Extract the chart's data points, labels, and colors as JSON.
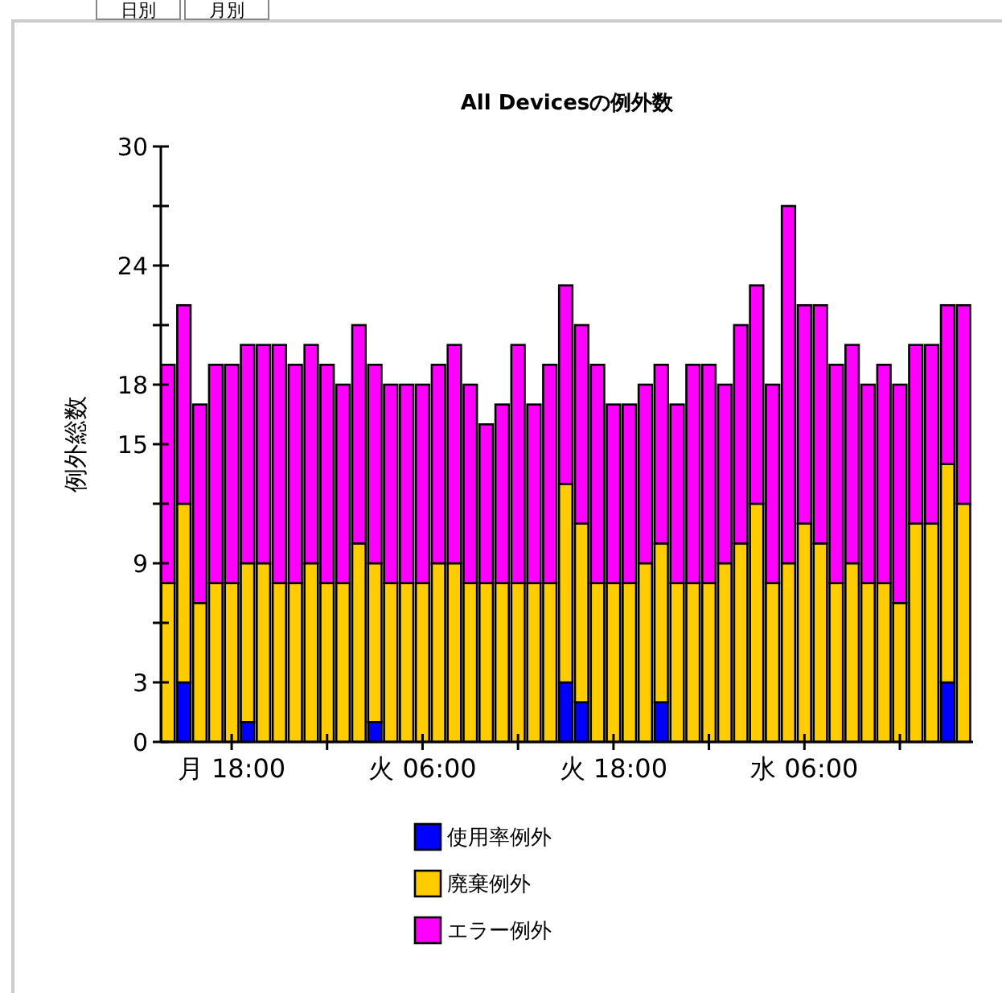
{
  "chart_data": {
    "type": "bar",
    "stacked": true,
    "title": "All Devicesの例外数",
    "ylabel": "例外総数",
    "annotations": [
      "日別",
      "月別"
    ],
    "categories": [
      null,
      null,
      null,
      null,
      "月 18:00",
      null,
      null,
      null,
      null,
      null,
      null,
      null,
      null,
      null,
      null,
      null,
      "火 06:00",
      null,
      null,
      null,
      null,
      null,
      null,
      null,
      null,
      null,
      null,
      null,
      "火 18:00",
      null,
      null,
      null,
      null,
      null,
      null,
      null,
      null,
      null,
      null,
      null,
      "水 06:00",
      null,
      null,
      null,
      null,
      null,
      null,
      null,
      null,
      null,
      null
    ],
    "series": [
      {
        "name": "使用率例外",
        "color": "#0000ff",
        "values": [
          0,
          3,
          0,
          0,
          0,
          1,
          0,
          0,
          0,
          0,
          0,
          0,
          0,
          1,
          0,
          0,
          0,
          0,
          0,
          0,
          0,
          0,
          0,
          0,
          0,
          3,
          2,
          0,
          0,
          0,
          0,
          2,
          0,
          0,
          0,
          0,
          0,
          0,
          0,
          0,
          0,
          0,
          0,
          0,
          0,
          0,
          0,
          0,
          0,
          3,
          0
        ]
      },
      {
        "name": "廃棄例外",
        "color": "#ffcc00",
        "values": [
          8,
          9,
          7,
          8,
          8,
          8,
          9,
          8,
          8,
          9,
          8,
          8,
          10,
          8,
          8,
          8,
          8,
          9,
          9,
          8,
          8,
          8,
          8,
          8,
          8,
          10,
          9,
          8,
          8,
          8,
          9,
          8,
          8,
          8,
          8,
          9,
          10,
          12,
          8,
          9,
          11,
          10,
          8,
          9,
          8,
          8,
          7,
          11,
          11,
          11,
          12
        ]
      },
      {
        "name": "エラー例外",
        "color": "#ff00ff",
        "values": [
          11,
          10,
          10,
          11,
          11,
          11,
          11,
          12,
          11,
          11,
          11,
          10,
          11,
          10,
          10,
          10,
          10,
          10,
          11,
          10,
          8,
          9,
          12,
          9,
          11,
          10,
          10,
          11,
          9,
          9,
          9,
          9,
          9,
          11,
          11,
          9,
          11,
          11,
          10,
          18,
          11,
          12,
          11,
          11,
          10,
          11,
          11,
          9,
          9,
          8,
          10
        ]
      }
    ],
    "ylim": [
      0,
      30
    ],
    "yticks": [
      0,
      3,
      {
        "value": 6,
        "label": null
      },
      9,
      {
        "value": 12,
        "label": null
      },
      15,
      18,
      {
        "value": 21,
        "label": null
      },
      24,
      {
        "value": 27,
        "label": null
      },
      30
    ],
    "grid": false,
    "legend": "bottom"
  }
}
